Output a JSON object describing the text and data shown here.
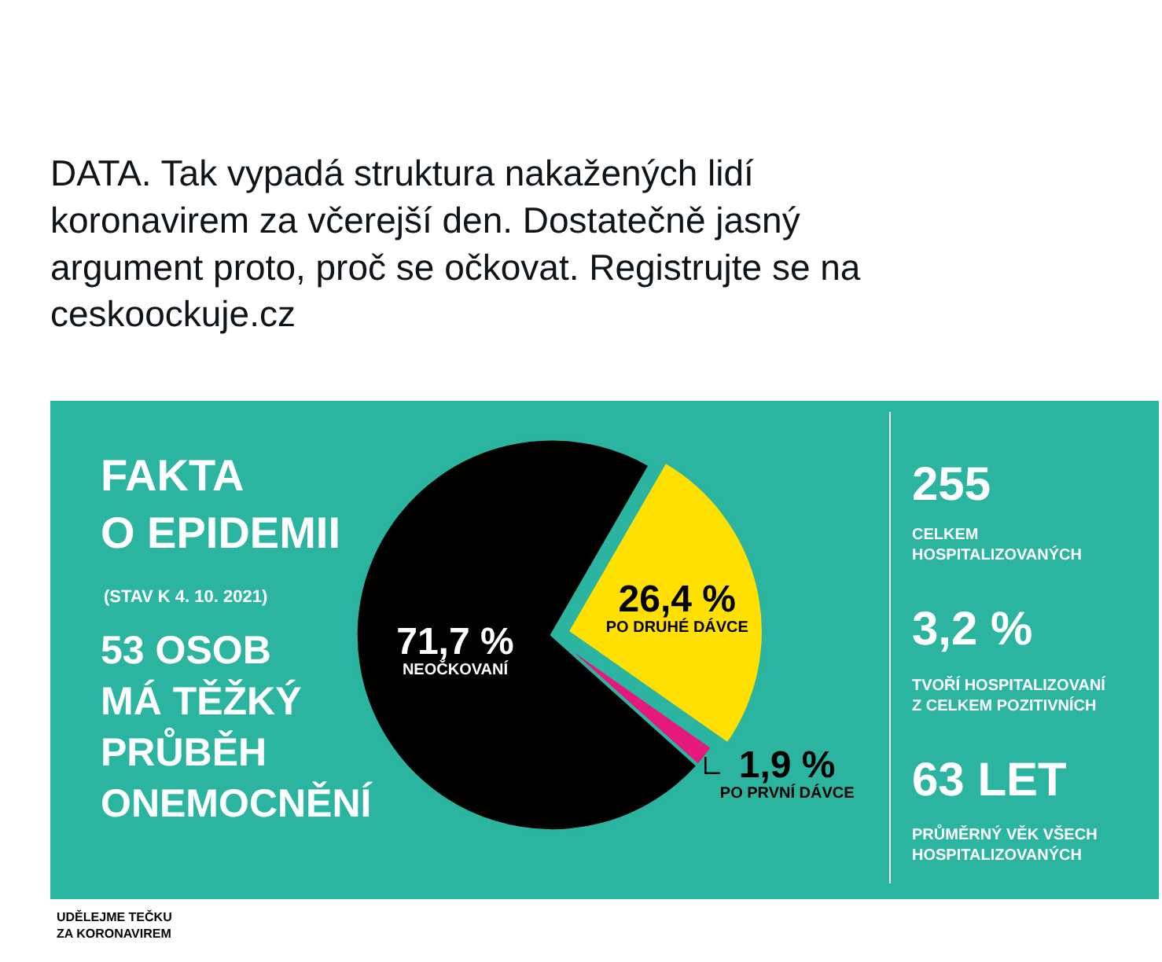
{
  "chart_data": {
    "type": "pie",
    "title": "FAKTA\nO EPIDEMII",
    "subtitle": "(STAV K 4. 10. 2021)",
    "categories": [
      "PO DRUHÉ DÁVCE",
      "PO PRVNÍ DÁVCE",
      "NEOČKOVANÍ"
    ],
    "values": [
      26.4,
      1.9,
      71.7
    ],
    "colors": [
      "#ffe000",
      "#e5197c",
      "#000000"
    ],
    "value_labels": [
      "26,4 %",
      "1,9 %",
      "71,7 %"
    ],
    "legend": false,
    "annotations": [
      "DATA. Tak vypadá struktura nakažených lidí\nkoronavirem za včerejší den. Dostatečně jasný\nargument proto, proč se očkovat. Registrujte se na\nceskoockuje.cz",
      "53 OSOB\nMÁ TĚŽKÝ\nPRŮBĚH\nONEMOCNĚNÍ",
      "255",
      "CELKEM\nHOSPITALIZOVANÝCH",
      "3,2 %",
      "TVOŘÍ HOSPITALIZOVANÍ\nZ CELKEM POZITIVNÍCH",
      "63 LET",
      "PRŮMĚRNÝ VĚK VŠECH\nHOSPITALIZOVANÝCH",
      "UDĚLEJME TEČKU\nZA KORONAVIREM"
    ]
  }
}
